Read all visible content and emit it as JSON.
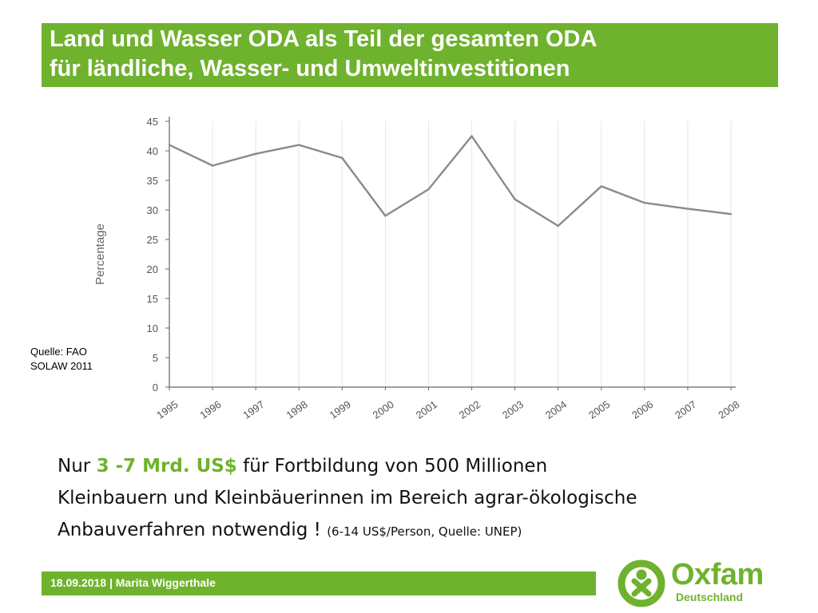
{
  "slide": {
    "title_line1": "Land und Wasser ODA als Teil der gesamten ODA",
    "title_line2": "für ländliche, Wasser- und Umweltinvestitionen"
  },
  "source": {
    "line1": "Quelle: FAO",
    "line2": "SOLAW 2011"
  },
  "body": {
    "part1": "Nur ",
    "highlight": "3 -7 Mrd. US$",
    "part2": " für  Fortbildung von 500 Millionen",
    "line2": "Kleinbauern und Kleinbäuerinnen im Bereich agrar-ökologische",
    "line3": "Anbauverfahren notwendig ! ",
    "note": " (6-14 US$/Person, Quelle: UNEP)"
  },
  "footer": {
    "text": "18.09.2018 | Marita Wiggerthale"
  },
  "logo": {
    "word": "Oxfam",
    "sub": "Deutschland"
  },
  "colors": {
    "brand_green": "#6fb22d",
    "line": "#8a8a8a",
    "grid": "#e6e6e6"
  },
  "chart_data": {
    "type": "line",
    "xlabel": "",
    "ylabel": "Percentage",
    "ylim": [
      0,
      45
    ],
    "yticks": [
      0,
      5,
      10,
      15,
      20,
      25,
      30,
      35,
      40,
      45
    ],
    "categories": [
      "1995",
      "1996",
      "1997",
      "1998",
      "1999",
      "2000",
      "2001",
      "2002",
      "2003",
      "2004",
      "2005",
      "2006",
      "2007",
      "2008"
    ],
    "values": [
      41,
      37.5,
      39.5,
      41,
      38.8,
      29,
      33.5,
      42.5,
      31.8,
      27.3,
      34,
      31.2,
      30.2,
      29.3
    ],
    "grid": true,
    "legend": "none"
  }
}
